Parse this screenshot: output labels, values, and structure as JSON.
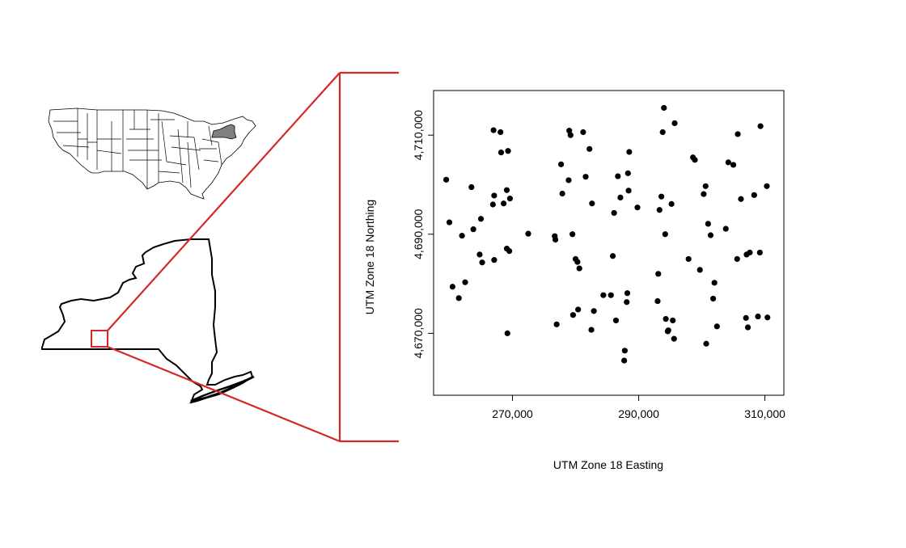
{
  "colors": {
    "highlight": "#d62728",
    "highlighted_state": "#808080",
    "ink": "#000000"
  },
  "us_map": {
    "highlighted_state": "New York"
  },
  "ny_map": {
    "study_area_box": "red-square"
  },
  "chart_data": {
    "type": "scatter",
    "xlabel": "UTM Zone 18 Easting",
    "ylabel": "UTM Zone 18 Northing",
    "xlim": [
      257500,
      313000
    ],
    "ylim": [
      4657500,
      4719000
    ],
    "xticks": [
      270000,
      290000,
      310000
    ],
    "xtick_labels": [
      "270,000",
      "290,000",
      "310,000"
    ],
    "yticks": [
      4670000,
      4690000,
      4710000
    ],
    "ytick_labels": [
      "4,670,000",
      "4,690,000",
      "4,710,000"
    ],
    "grid": false,
    "series": [
      {
        "x": [
          259500,
          260000,
          260500,
          261500,
          262000,
          262500,
          263500,
          263800,
          265000,
          264800,
          265200,
          267000,
          267100,
          266900,
          267100,
          268100,
          268200,
          268600,
          269100,
          269100,
          269500,
          269300,
          269600,
          269200,
          272500,
          276700,
          276800,
          277000,
          277700,
          277900,
          279000,
          278900,
          279200,
          279500,
          279600,
          280000,
          280300,
          280400,
          280600,
          281200,
          281600,
          282200,
          282600,
          282500,
          282900,
          284400,
          285600,
          285900,
          286100,
          286400,
          286700,
          287100,
          287700,
          287800,
          288100,
          288200,
          288300,
          288400,
          288500,
          289800,
          293000,
          293100,
          293300,
          293600,
          293800,
          294000,
          294200,
          294300,
          294600,
          294700,
          295200,
          295400,
          295600,
          295700,
          297900,
          298600,
          298900,
          299700,
          300300,
          300600,
          300700,
          301000,
          301400,
          301800,
          302000,
          302400,
          303800,
          304200,
          305000,
          305600,
          305700,
          306200,
          307000,
          307100,
          307300,
          307600,
          308300,
          308900,
          309200,
          309300,
          310300,
          310400
        ],
        "y": [
          4701000,
          4692400,
          4679400,
          4677100,
          4689700,
          4680300,
          4699500,
          4691000,
          4693100,
          4685900,
          4684300,
          4711000,
          4697800,
          4696000,
          4684800,
          4710600,
          4706500,
          4696200,
          4698900,
          4687100,
          4686600,
          4706800,
          4697200,
          4670000,
          4690100,
          4689600,
          4688900,
          4671800,
          4704100,
          4698200,
          4710900,
          4700900,
          4710000,
          4690000,
          4673700,
          4685000,
          4684400,
          4674800,
          4683100,
          4710600,
          4701600,
          4707200,
          4696200,
          4670700,
          4674500,
          4677700,
          4677700,
          4685600,
          4694300,
          4672600,
          4701700,
          4697400,
          4664500,
          4666500,
          4676300,
          4678100,
          4702300,
          4698800,
          4706600,
          4695400,
          4676500,
          4682000,
          4694900,
          4697600,
          4710600,
          4715500,
          4690000,
          4672900,
          4670400,
          4670600,
          4696100,
          4672600,
          4668900,
          4712400,
          4685000,
          4705500,
          4705000,
          4682800,
          4698100,
          4699700,
          4667900,
          4692100,
          4689800,
          4677000,
          4680200,
          4671400,
          4691100,
          4704500,
          4704000,
          4685000,
          4710200,
          4697100,
          4673100,
          4685900,
          4671200,
          4686300,
          4697900,
          4673400,
          4686300,
          4711800,
          4699700,
          4673200
        ],
        "y_extra": []
      }
    ]
  }
}
